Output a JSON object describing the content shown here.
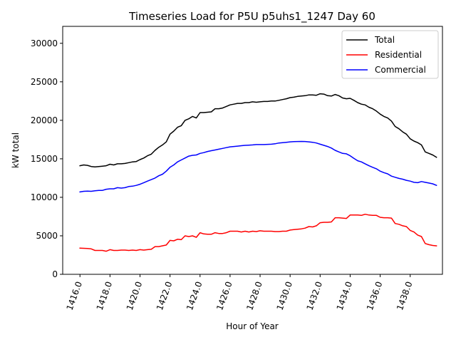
{
  "chart_data": {
    "type": "line",
    "title": "Timeseries Load for P5U p5uhs1_1247  Day 60",
    "xlabel": "Hour of Year",
    "ylabel": "kW total",
    "xlim": [
      1414.85,
      1440.15
    ],
    "ylim": [
      0,
      32200
    ],
    "grid": false,
    "legend_position": "top-right",
    "xticks": [
      1416,
      1418,
      1420,
      1422,
      1424,
      1426,
      1428,
      1430,
      1432,
      1434,
      1436,
      1438
    ],
    "xtick_labels": [
      "1416.0",
      "1418.0",
      "1420.0",
      "1422.0",
      "1424.0",
      "1426.0",
      "1428.0",
      "1430.0",
      "1432.0",
      "1434.0",
      "1436.0",
      "1438.0"
    ],
    "yticks": [
      0,
      5000,
      10000,
      15000,
      20000,
      25000,
      30000
    ],
    "ytick_labels": [
      "0",
      "5000",
      "10000",
      "15000",
      "20000",
      "25000",
      "30000"
    ],
    "series": [
      {
        "name": "Total",
        "color": "#000000",
        "points": [
          [
            1416.0,
            14100
          ],
          [
            1416.25,
            14200
          ],
          [
            1416.5,
            14150
          ],
          [
            1416.75,
            14000
          ],
          [
            1417.0,
            13950
          ],
          [
            1417.25,
            14000
          ],
          [
            1417.5,
            14050
          ],
          [
            1417.75,
            14100
          ],
          [
            1418.0,
            14300
          ],
          [
            1418.25,
            14200
          ],
          [
            1418.5,
            14350
          ],
          [
            1418.75,
            14350
          ],
          [
            1419.0,
            14400
          ],
          [
            1419.25,
            14500
          ],
          [
            1419.5,
            14600
          ],
          [
            1419.75,
            14650
          ],
          [
            1420.0,
            14900
          ],
          [
            1420.25,
            15100
          ],
          [
            1420.5,
            15400
          ],
          [
            1420.75,
            15600
          ],
          [
            1421.0,
            16100
          ],
          [
            1421.25,
            16500
          ],
          [
            1421.5,
            16800
          ],
          [
            1421.75,
            17200
          ],
          [
            1422.0,
            18200
          ],
          [
            1422.25,
            18600
          ],
          [
            1422.5,
            19100
          ],
          [
            1422.75,
            19300
          ],
          [
            1423.0,
            20000
          ],
          [
            1423.25,
            20200
          ],
          [
            1423.5,
            20500
          ],
          [
            1423.75,
            20300
          ],
          [
            1424.0,
            21000
          ],
          [
            1424.25,
            21000
          ],
          [
            1424.5,
            21050
          ],
          [
            1424.75,
            21100
          ],
          [
            1425.0,
            21500
          ],
          [
            1425.25,
            21500
          ],
          [
            1425.5,
            21600
          ],
          [
            1425.75,
            21800
          ],
          [
            1426.0,
            22000
          ],
          [
            1426.25,
            22100
          ],
          [
            1426.5,
            22200
          ],
          [
            1426.75,
            22200
          ],
          [
            1427.0,
            22300
          ],
          [
            1427.25,
            22300
          ],
          [
            1427.5,
            22400
          ],
          [
            1427.75,
            22350
          ],
          [
            1428.0,
            22400
          ],
          [
            1428.25,
            22450
          ],
          [
            1428.5,
            22450
          ],
          [
            1428.75,
            22500
          ],
          [
            1429.0,
            22500
          ],
          [
            1429.25,
            22600
          ],
          [
            1429.5,
            22700
          ],
          [
            1429.75,
            22800
          ],
          [
            1430.0,
            22950
          ],
          [
            1430.25,
            23000
          ],
          [
            1430.5,
            23100
          ],
          [
            1430.75,
            23150
          ],
          [
            1431.0,
            23200
          ],
          [
            1431.25,
            23300
          ],
          [
            1431.5,
            23300
          ],
          [
            1431.75,
            23250
          ],
          [
            1432.0,
            23450
          ],
          [
            1432.25,
            23400
          ],
          [
            1432.5,
            23200
          ],
          [
            1432.75,
            23150
          ],
          [
            1433.0,
            23350
          ],
          [
            1433.25,
            23200
          ],
          [
            1433.5,
            22900
          ],
          [
            1433.75,
            22800
          ],
          [
            1434.0,
            22850
          ],
          [
            1434.25,
            22600
          ],
          [
            1434.5,
            22300
          ],
          [
            1434.75,
            22100
          ],
          [
            1435.0,
            22000
          ],
          [
            1435.25,
            21700
          ],
          [
            1435.5,
            21500
          ],
          [
            1435.75,
            21200
          ],
          [
            1436.0,
            20800
          ],
          [
            1436.25,
            20500
          ],
          [
            1436.5,
            20300
          ],
          [
            1436.75,
            19900
          ],
          [
            1437.0,
            19200
          ],
          [
            1437.25,
            18900
          ],
          [
            1437.5,
            18500
          ],
          [
            1437.75,
            18200
          ],
          [
            1438.0,
            17600
          ],
          [
            1438.25,
            17300
          ],
          [
            1438.5,
            17100
          ],
          [
            1438.75,
            16800
          ],
          [
            1439.0,
            15900
          ],
          [
            1439.25,
            15700
          ],
          [
            1439.5,
            15500
          ],
          [
            1439.75,
            15200
          ]
        ]
      },
      {
        "name": "Residential",
        "color": "#ff0000",
        "points": [
          [
            1416.0,
            3400
          ],
          [
            1416.25,
            3380
          ],
          [
            1416.5,
            3350
          ],
          [
            1416.75,
            3300
          ],
          [
            1417.0,
            3100
          ],
          [
            1417.25,
            3100
          ],
          [
            1417.5,
            3100
          ],
          [
            1417.75,
            3000
          ],
          [
            1418.0,
            3200
          ],
          [
            1418.25,
            3100
          ],
          [
            1418.5,
            3100
          ],
          [
            1418.75,
            3150
          ],
          [
            1419.0,
            3150
          ],
          [
            1419.25,
            3100
          ],
          [
            1419.5,
            3150
          ],
          [
            1419.75,
            3100
          ],
          [
            1420.0,
            3200
          ],
          [
            1420.25,
            3150
          ],
          [
            1420.5,
            3200
          ],
          [
            1420.75,
            3250
          ],
          [
            1421.0,
            3600
          ],
          [
            1421.25,
            3600
          ],
          [
            1421.5,
            3700
          ],
          [
            1421.75,
            3800
          ],
          [
            1422.0,
            4400
          ],
          [
            1422.25,
            4350
          ],
          [
            1422.5,
            4550
          ],
          [
            1422.75,
            4500
          ],
          [
            1423.0,
            5000
          ],
          [
            1423.25,
            4900
          ],
          [
            1423.5,
            5000
          ],
          [
            1423.75,
            4800
          ],
          [
            1424.0,
            5400
          ],
          [
            1424.25,
            5250
          ],
          [
            1424.5,
            5200
          ],
          [
            1424.75,
            5200
          ],
          [
            1425.0,
            5400
          ],
          [
            1425.25,
            5300
          ],
          [
            1425.5,
            5300
          ],
          [
            1425.75,
            5400
          ],
          [
            1426.0,
            5600
          ],
          [
            1426.25,
            5600
          ],
          [
            1426.5,
            5600
          ],
          [
            1426.75,
            5500
          ],
          [
            1427.0,
            5600
          ],
          [
            1427.25,
            5500
          ],
          [
            1427.5,
            5600
          ],
          [
            1427.75,
            5550
          ],
          [
            1428.0,
            5650
          ],
          [
            1428.25,
            5600
          ],
          [
            1428.5,
            5600
          ],
          [
            1428.75,
            5600
          ],
          [
            1429.0,
            5550
          ],
          [
            1429.25,
            5550
          ],
          [
            1429.5,
            5600
          ],
          [
            1429.75,
            5600
          ],
          [
            1430.0,
            5750
          ],
          [
            1430.25,
            5800
          ],
          [
            1430.5,
            5850
          ],
          [
            1430.75,
            5900
          ],
          [
            1431.0,
            6000
          ],
          [
            1431.25,
            6200
          ],
          [
            1431.5,
            6150
          ],
          [
            1431.75,
            6300
          ],
          [
            1432.0,
            6700
          ],
          [
            1432.25,
            6750
          ],
          [
            1432.5,
            6750
          ],
          [
            1432.75,
            6800
          ],
          [
            1433.0,
            7350
          ],
          [
            1433.25,
            7350
          ],
          [
            1433.5,
            7300
          ],
          [
            1433.75,
            7250
          ],
          [
            1434.0,
            7700
          ],
          [
            1434.25,
            7700
          ],
          [
            1434.5,
            7700
          ],
          [
            1434.75,
            7650
          ],
          [
            1435.0,
            7800
          ],
          [
            1435.25,
            7700
          ],
          [
            1435.5,
            7650
          ],
          [
            1435.75,
            7650
          ],
          [
            1436.0,
            7400
          ],
          [
            1436.25,
            7350
          ],
          [
            1436.5,
            7350
          ],
          [
            1436.75,
            7300
          ],
          [
            1437.0,
            6600
          ],
          [
            1437.25,
            6500
          ],
          [
            1437.5,
            6300
          ],
          [
            1437.75,
            6200
          ],
          [
            1438.0,
            5700
          ],
          [
            1438.25,
            5500
          ],
          [
            1438.5,
            5100
          ],
          [
            1438.75,
            4900
          ],
          [
            1439.0,
            4000
          ],
          [
            1439.25,
            3850
          ],
          [
            1439.5,
            3750
          ],
          [
            1439.75,
            3700
          ]
        ]
      },
      {
        "name": "Commercial",
        "color": "#0000ff",
        "points": [
          [
            1416.0,
            10700
          ],
          [
            1416.25,
            10780
          ],
          [
            1416.5,
            10800
          ],
          [
            1416.75,
            10780
          ],
          [
            1417.0,
            10850
          ],
          [
            1417.25,
            10900
          ],
          [
            1417.5,
            10900
          ],
          [
            1417.75,
            11050
          ],
          [
            1418.0,
            11100
          ],
          [
            1418.25,
            11100
          ],
          [
            1418.5,
            11250
          ],
          [
            1418.75,
            11200
          ],
          [
            1419.0,
            11250
          ],
          [
            1419.25,
            11400
          ],
          [
            1419.5,
            11450
          ],
          [
            1419.75,
            11550
          ],
          [
            1420.0,
            11700
          ],
          [
            1420.25,
            11900
          ],
          [
            1420.5,
            12100
          ],
          [
            1420.75,
            12300
          ],
          [
            1421.0,
            12500
          ],
          [
            1421.25,
            12800
          ],
          [
            1421.5,
            13000
          ],
          [
            1421.75,
            13400
          ],
          [
            1422.0,
            13900
          ],
          [
            1422.25,
            14200
          ],
          [
            1422.5,
            14600
          ],
          [
            1422.75,
            14850
          ],
          [
            1423.0,
            15100
          ],
          [
            1423.25,
            15350
          ],
          [
            1423.5,
            15450
          ],
          [
            1423.75,
            15500
          ],
          [
            1424.0,
            15700
          ],
          [
            1424.25,
            15800
          ],
          [
            1424.5,
            15950
          ],
          [
            1424.75,
            16050
          ],
          [
            1425.0,
            16150
          ],
          [
            1425.25,
            16250
          ],
          [
            1425.5,
            16350
          ],
          [
            1425.75,
            16450
          ],
          [
            1426.0,
            16550
          ],
          [
            1426.25,
            16600
          ],
          [
            1426.5,
            16650
          ],
          [
            1426.75,
            16700
          ],
          [
            1427.0,
            16750
          ],
          [
            1427.25,
            16780
          ],
          [
            1427.5,
            16800
          ],
          [
            1427.75,
            16850
          ],
          [
            1428.0,
            16850
          ],
          [
            1428.25,
            16850
          ],
          [
            1428.5,
            16880
          ],
          [
            1428.75,
            16900
          ],
          [
            1429.0,
            16950
          ],
          [
            1429.25,
            17050
          ],
          [
            1429.5,
            17100
          ],
          [
            1429.75,
            17150
          ],
          [
            1430.0,
            17200
          ],
          [
            1430.25,
            17230
          ],
          [
            1430.5,
            17250
          ],
          [
            1430.75,
            17260
          ],
          [
            1431.0,
            17250
          ],
          [
            1431.25,
            17200
          ],
          [
            1431.5,
            17150
          ],
          [
            1431.75,
            17050
          ],
          [
            1432.0,
            16900
          ],
          [
            1432.25,
            16750
          ],
          [
            1432.5,
            16600
          ],
          [
            1432.75,
            16400
          ],
          [
            1433.0,
            16100
          ],
          [
            1433.25,
            15900
          ],
          [
            1433.5,
            15700
          ],
          [
            1433.75,
            15650
          ],
          [
            1434.0,
            15400
          ],
          [
            1434.25,
            15050
          ],
          [
            1434.5,
            14750
          ],
          [
            1434.75,
            14600
          ],
          [
            1435.0,
            14350
          ],
          [
            1435.25,
            14100
          ],
          [
            1435.5,
            13900
          ],
          [
            1435.75,
            13700
          ],
          [
            1436.0,
            13400
          ],
          [
            1436.25,
            13200
          ],
          [
            1436.5,
            13050
          ],
          [
            1436.75,
            12750
          ],
          [
            1437.0,
            12600
          ],
          [
            1437.25,
            12450
          ],
          [
            1437.5,
            12350
          ],
          [
            1437.75,
            12200
          ],
          [
            1438.0,
            12100
          ],
          [
            1438.25,
            11950
          ],
          [
            1438.5,
            11900
          ],
          [
            1438.75,
            12050
          ],
          [
            1439.0,
            11950
          ],
          [
            1439.25,
            11850
          ],
          [
            1439.5,
            11750
          ],
          [
            1439.75,
            11550
          ]
        ]
      }
    ]
  }
}
